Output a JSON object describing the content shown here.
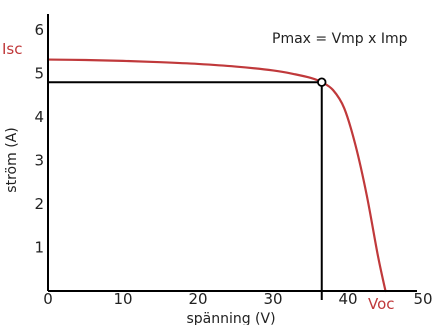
{
  "chart_data": {
    "type": "line",
    "title": "",
    "xlabel": "spänning (V)",
    "ylabel": "ström (A)",
    "xlim": [
      0,
      50
    ],
    "ylim": [
      0,
      6
    ],
    "xticks": [
      "0",
      "10",
      "20",
      "30",
      "40",
      "50"
    ],
    "yticks": [
      "1",
      "2",
      "3",
      "4",
      "5",
      "6"
    ],
    "grid": false,
    "series": [
      {
        "x": [
          0,
          5,
          10,
          15,
          20,
          25,
          30,
          33,
          35,
          36.5,
          38,
          39.5,
          41,
          42.5,
          44,
          45
        ],
        "y": [
          5.32,
          5.31,
          5.29,
          5.26,
          5.22,
          5.16,
          5.07,
          4.98,
          4.9,
          4.8,
          4.62,
          4.2,
          3.35,
          2.2,
          0.8,
          0
        ],
        "color": "#c0393b"
      }
    ],
    "max_power_point": {
      "x": 36.5,
      "y": 4.8
    },
    "annotation": "Pmax = Vmp x Imp",
    "isc_label": "Isc",
    "voc_label": "Voc",
    "colors": {
      "curve": "#c0393b",
      "axes": "#000000",
      "markers": "#000000"
    }
  }
}
